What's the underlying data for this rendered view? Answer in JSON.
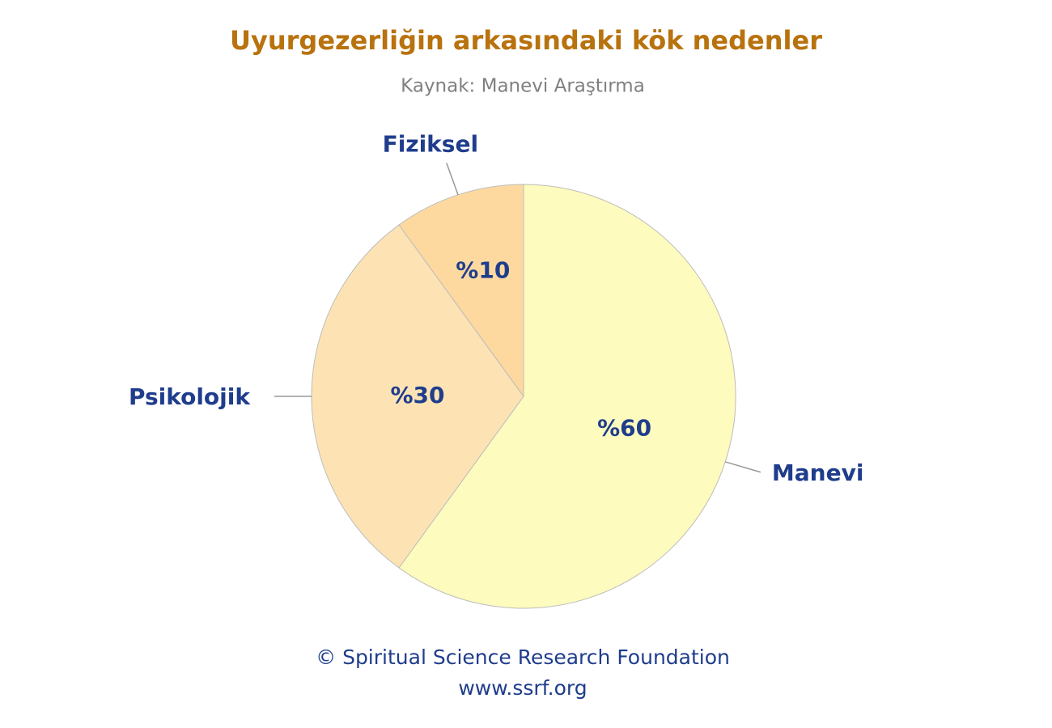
{
  "chart_data": {
    "type": "pie",
    "title": "Uyurgezerliğin arkasındaki kök nedenler",
    "subtitle": "Kaynak: Manevi Araştırma",
    "categories": [
      "Manevi",
      "Psikolojik",
      "Fiziksel"
    ],
    "values": [
      60,
      30,
      10
    ],
    "value_labels": [
      "%60",
      "%30",
      "%10"
    ],
    "colors": [
      "#fdfbbd",
      "#fde3b4",
      "#fdd9a0"
    ]
  },
  "footer": {
    "lines": [
      "© Spiritual Science Research Foundation",
      "www.ssrf.org"
    ]
  }
}
